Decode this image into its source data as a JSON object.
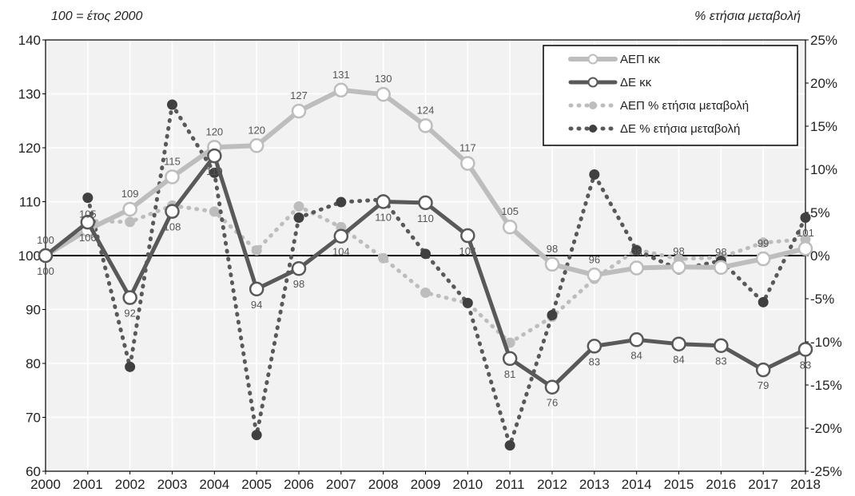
{
  "header": {
    "left_note": "100 = έτος 2000",
    "right_note": "% ετήσια μεταβολή"
  },
  "colors": {
    "gdp": "#bdbdbd",
    "de": "#595959",
    "plot_bg": "#f2f2f2",
    "grid": "#ffffff"
  },
  "chart_data": {
    "type": "line",
    "x": [
      "2000",
      "2001",
      "2002",
      "2003",
      "2004",
      "2005",
      "2006",
      "2007",
      "2008",
      "2009",
      "2010",
      "2011",
      "2012",
      "2013",
      "2014",
      "2015",
      "2016",
      "2017",
      "2018"
    ],
    "y_left": {
      "ylim": [
        60,
        140
      ],
      "ticks": [
        "60",
        "70",
        "80",
        "90",
        "100",
        "110",
        "120",
        "130",
        "140"
      ]
    },
    "y_right": {
      "ylim": [
        -25,
        25
      ],
      "ticks": [
        "-25%",
        "-20%",
        "-15%",
        "-10%",
        "-5%",
        "0%",
        "5%",
        "10%",
        "15%",
        "20%",
        "25%"
      ]
    },
    "grid": true,
    "legend_position": "top-right",
    "series": [
      {
        "name": "ΑΕΠ κκ",
        "axis": "left",
        "style": "solid-light",
        "values": [
          100,
          104.8,
          108.6,
          114.6,
          120.1,
          120.4,
          126.8,
          130.7,
          129.9,
          124.1,
          117.1,
          105.3,
          98.4,
          96.4,
          97.7,
          97.9,
          97.8,
          99.4,
          101.3
        ],
        "labels": [
          "100",
          "105",
          "109",
          "115",
          "120",
          "120",
          "127",
          "131",
          "130",
          "124",
          "117",
          "105",
          "98",
          "96",
          "98",
          "98",
          "98",
          "99",
          "101"
        ]
      },
      {
        "name": "ΔΕ κκ",
        "axis": "left",
        "style": "solid-dark",
        "values": [
          100,
          106.2,
          92.2,
          108.2,
          118.5,
          93.8,
          97.6,
          103.6,
          110.0,
          109.8,
          103.7,
          80.9,
          75.6,
          83.2,
          84.4,
          83.6,
          83.3,
          78.8,
          82.6
        ],
        "labels": [
          "100",
          "106",
          "92",
          "108",
          "119",
          "94",
          "98",
          "104",
          "110",
          "110",
          "104",
          "81",
          "76",
          "83",
          "84",
          "84",
          "83",
          "79",
          "83"
        ]
      },
      {
        "name": "ΑΕΠ % ετήσια μεταβολή",
        "axis": "right",
        "style": "dotted-light",
        "values": [
          null,
          4.0,
          3.9,
          5.8,
          5.1,
          0.6,
          5.7,
          3.3,
          -0.3,
          -4.3,
          -5.5,
          -10.1,
          -7.1,
          -2.7,
          0.7,
          -0.4,
          -0.2,
          1.5,
          1.9
        ]
      },
      {
        "name": "ΔΕ % ετήσια μεταβολή",
        "axis": "right",
        "style": "dotted-dark",
        "values": [
          null,
          6.7,
          -12.9,
          17.5,
          9.6,
          -20.8,
          4.4,
          6.2,
          6.5,
          0.2,
          -5.5,
          -22.0,
          -6.9,
          9.4,
          0.6,
          -1.6,
          -0.6,
          -5.4,
          4.4
        ]
      }
    ]
  }
}
